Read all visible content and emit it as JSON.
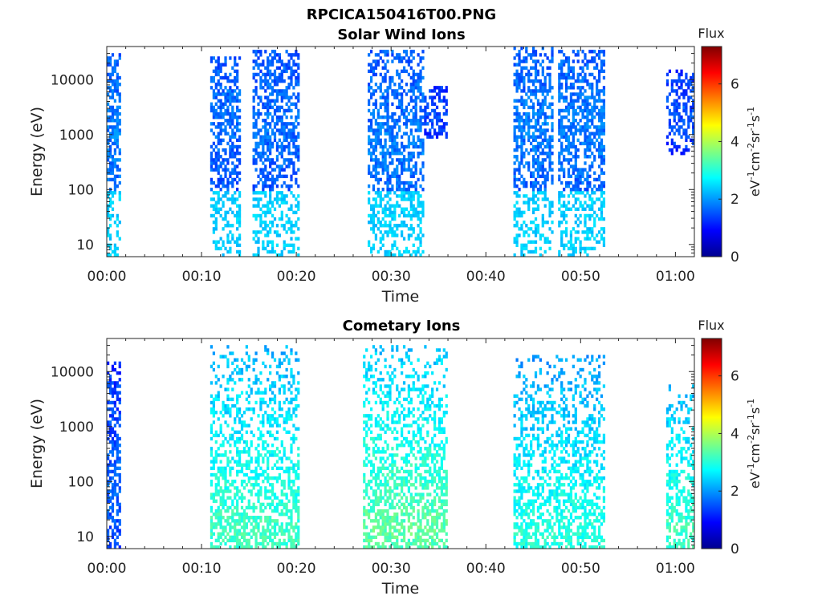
{
  "figure_title": "RPCICA150416T00.PNG",
  "colorbar": {
    "title": "Flux",
    "label_base": "eV",
    "label_exp1": "-1",
    "label_cm": "cm",
    "label_exp2": "-2",
    "label_sr": "sr",
    "label_exp3": "-1",
    "label_s": "s",
    "label_exp4": "-1",
    "ticks": [
      "0",
      "2",
      "4",
      "6"
    ],
    "range": [
      0,
      7.3
    ],
    "colormap": "jet"
  },
  "chart_data": [
    {
      "type": "heatmap",
      "title": "Solar Wind Ions",
      "xlabel": "Time",
      "ylabel": "Energy (eV)",
      "yscale": "log",
      "ylim": [
        6,
        40000
      ],
      "xlim_minutes": [
        0,
        62
      ],
      "x_ticks": [
        "00:00",
        "00:10",
        "00:20",
        "00:30",
        "00:40",
        "00:50",
        "01:00"
      ],
      "y_ticks": [
        "10",
        "100",
        "1000",
        "10000"
      ],
      "bursts": [
        {
          "t_start": 0.0,
          "t_end": 1.4,
          "e_min": 6,
          "e_max": 30000,
          "peak_e": 900,
          "peak_flux": 1.8
        },
        {
          "t_start": 11.0,
          "t_end": 14.2,
          "e_min": 6,
          "e_max": 25000,
          "peak_e": 2000,
          "peak_flux": 1.7
        },
        {
          "t_start": 15.5,
          "t_end": 20.3,
          "e_min": 6,
          "e_max": 35000,
          "peak_e": 1500,
          "peak_flux": 1.7
        },
        {
          "t_start": 27.5,
          "t_end": 33.5,
          "e_min": 6,
          "e_max": 35000,
          "peak_e": 800,
          "peak_flux": 1.8
        },
        {
          "t_start": 33.5,
          "t_end": 36.0,
          "e_min": 800,
          "e_max": 8000,
          "peak_e": 2500,
          "peak_flux": 1.5
        },
        {
          "t_start": 43.0,
          "t_end": 47.0,
          "e_min": 6,
          "e_max": 38000,
          "peak_e": 1500,
          "peak_flux": 1.8
        },
        {
          "t_start": 47.5,
          "t_end": 52.5,
          "e_min": 6,
          "e_max": 35000,
          "peak_e": 1500,
          "peak_flux": 1.8
        },
        {
          "t_start": 59.0,
          "t_end": 62.0,
          "e_min": 400,
          "e_max": 15000,
          "peak_e": 2500,
          "peak_flux": 1.5
        }
      ]
    },
    {
      "type": "heatmap",
      "title": "Cometary Ions",
      "xlabel": "Time",
      "ylabel": "Energy (eV)",
      "yscale": "log",
      "ylim": [
        6,
        40000
      ],
      "xlim_minutes": [
        0,
        62
      ],
      "x_ticks": [
        "00:00",
        "00:10",
        "00:20",
        "00:30",
        "00:40",
        "00:50",
        "01:00"
      ],
      "y_ticks": [
        "10",
        "100",
        "1000",
        "10000"
      ],
      "bursts": [
        {
          "t_start": 0.0,
          "t_end": 1.4,
          "e_min": 6,
          "e_max": 15000,
          "peak_e": 100,
          "peak_flux": 1.6
        },
        {
          "t_start": 11.0,
          "t_end": 20.3,
          "e_min": 6,
          "e_max": 30000,
          "peak_e": 12,
          "peak_flux": 3.2
        },
        {
          "t_start": 27.0,
          "t_end": 36.0,
          "e_min": 6,
          "e_max": 30000,
          "peak_e": 12,
          "peak_flux": 3.4
        },
        {
          "t_start": 43.0,
          "t_end": 52.5,
          "e_min": 6,
          "e_max": 20000,
          "peak_e": 12,
          "peak_flux": 3.0
        },
        {
          "t_start": 59.0,
          "t_end": 62.0,
          "e_min": 6,
          "e_max": 6000,
          "peak_e": 12,
          "peak_flux": 3.2
        }
      ]
    }
  ]
}
